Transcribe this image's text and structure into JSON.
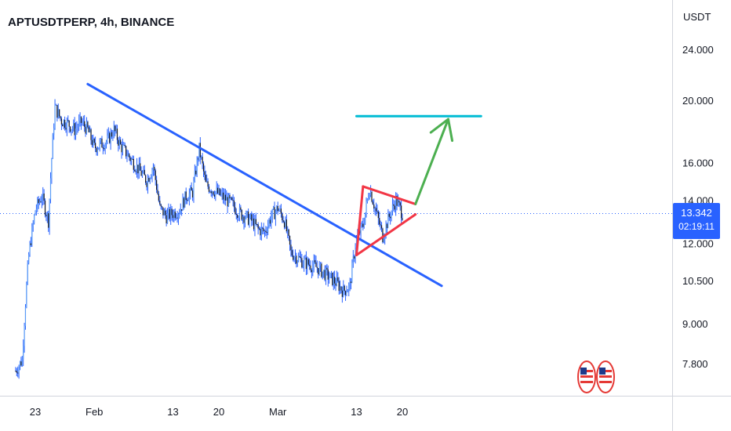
{
  "title": "APTUSDTPERP, 4h, BINANCE",
  "currency_label": "USDT",
  "price_badge": {
    "price": "13.342",
    "countdown": "02:19:11"
  },
  "colors": {
    "candle": "#2962ff",
    "trendline": "#2962ff",
    "triangle": "#f23645",
    "target_line": "#00bcd4",
    "arrow": "#4caf50"
  },
  "icons": [
    "us-flag-event-icon",
    "us-flag-event-icon"
  ],
  "chart_data": {
    "type": "candlestick",
    "y_scale": "log",
    "ylim": [
      7.0,
      28.0
    ],
    "current_price": 13.342,
    "y_ticks": [
      "24.000",
      "20.000",
      "16.000",
      "14.000",
      "12.000",
      "10.500",
      "9.000",
      "7.800"
    ],
    "x_ticks": [
      "23",
      "Feb",
      "13",
      "20",
      "Mar",
      "13",
      "20"
    ],
    "price_path": [
      [
        "Jan 20",
        7.6
      ],
      [
        "Jan 21",
        7.9
      ],
      [
        "Jan 22",
        11.5
      ],
      [
        "Jan 23",
        13.5
      ],
      [
        "Jan 24",
        14.2
      ],
      [
        "Jan 25",
        13.0
      ],
      [
        "Jan 26",
        19.5
      ],
      [
        "Jan 27",
        18.6
      ],
      [
        "Jan 28",
        18.4
      ],
      [
        "Jan 29",
        18.0
      ],
      [
        "Jan 30",
        18.5
      ],
      [
        "Jan 31",
        18.0
      ],
      [
        "Feb 1",
        16.9
      ],
      [
        "Feb 3",
        17.3
      ],
      [
        "Feb 4",
        18.0
      ],
      [
        "Feb 5",
        17.0
      ],
      [
        "Feb 7",
        16.0
      ],
      [
        "Feb 9",
        15.0
      ],
      [
        "Feb 10",
        15.8
      ],
      [
        "Feb 11",
        13.6
      ],
      [
        "Feb 12",
        13.2
      ],
      [
        "Feb 14",
        13.5
      ],
      [
        "Feb 15",
        14.2
      ],
      [
        "Feb 16",
        14.4
      ],
      [
        "Feb 17",
        16.8
      ],
      [
        "Feb 18",
        14.8
      ],
      [
        "Feb 20",
        14.3
      ],
      [
        "Feb 22",
        13.8
      ],
      [
        "Feb 23",
        13.4
      ],
      [
        "Feb 25",
        13.0
      ],
      [
        "Feb 26",
        12.6
      ],
      [
        "Feb 27",
        12.5
      ],
      [
        "Feb 28",
        13.2
      ],
      [
        "Mar 1",
        13.6
      ],
      [
        "Mar 2",
        13.0
      ],
      [
        "Mar 3",
        11.6
      ],
      [
        "Mar 5",
        11.2
      ],
      [
        "Mar 7",
        11.0
      ],
      [
        "Mar 9",
        10.6
      ],
      [
        "Mar 10",
        10.4
      ],
      [
        "Mar 11",
        10.1
      ],
      [
        "Mar 12",
        10.3
      ],
      [
        "Mar 13",
        12.2
      ],
      [
        "Mar 14",
        12.8
      ],
      [
        "Mar 15",
        14.6
      ],
      [
        "Mar 16",
        13.4
      ],
      [
        "Mar 17",
        12.3
      ],
      [
        "Mar 18",
        13.2
      ],
      [
        "Mar 19",
        14.0
      ],
      [
        "Mar 20",
        13.342
      ]
    ],
    "drawings": {
      "trendline": [
        [
          "Jan 31",
          21.2
        ],
        [
          "Mar 26",
          10.3
        ]
      ],
      "target_line": [
        [
          "Mar 13",
          18.9
        ],
        [
          "Apr 1",
          18.9
        ]
      ],
      "triangle_upper": [
        [
          "Mar 14",
          14.7
        ],
        [
          "Mar 22",
          13.8
        ]
      ],
      "triangle_lower": [
        [
          "Mar 13",
          11.5
        ],
        [
          "Mar 22",
          13.3
        ]
      ],
      "triangle_left": [
        [
          "Mar 14",
          14.7
        ],
        [
          "Mar 13",
          11.5
        ]
      ],
      "arrow": [
        [
          "Mar 22",
          13.8
        ],
        [
          "Mar 27",
          18.7
        ]
      ]
    }
  }
}
